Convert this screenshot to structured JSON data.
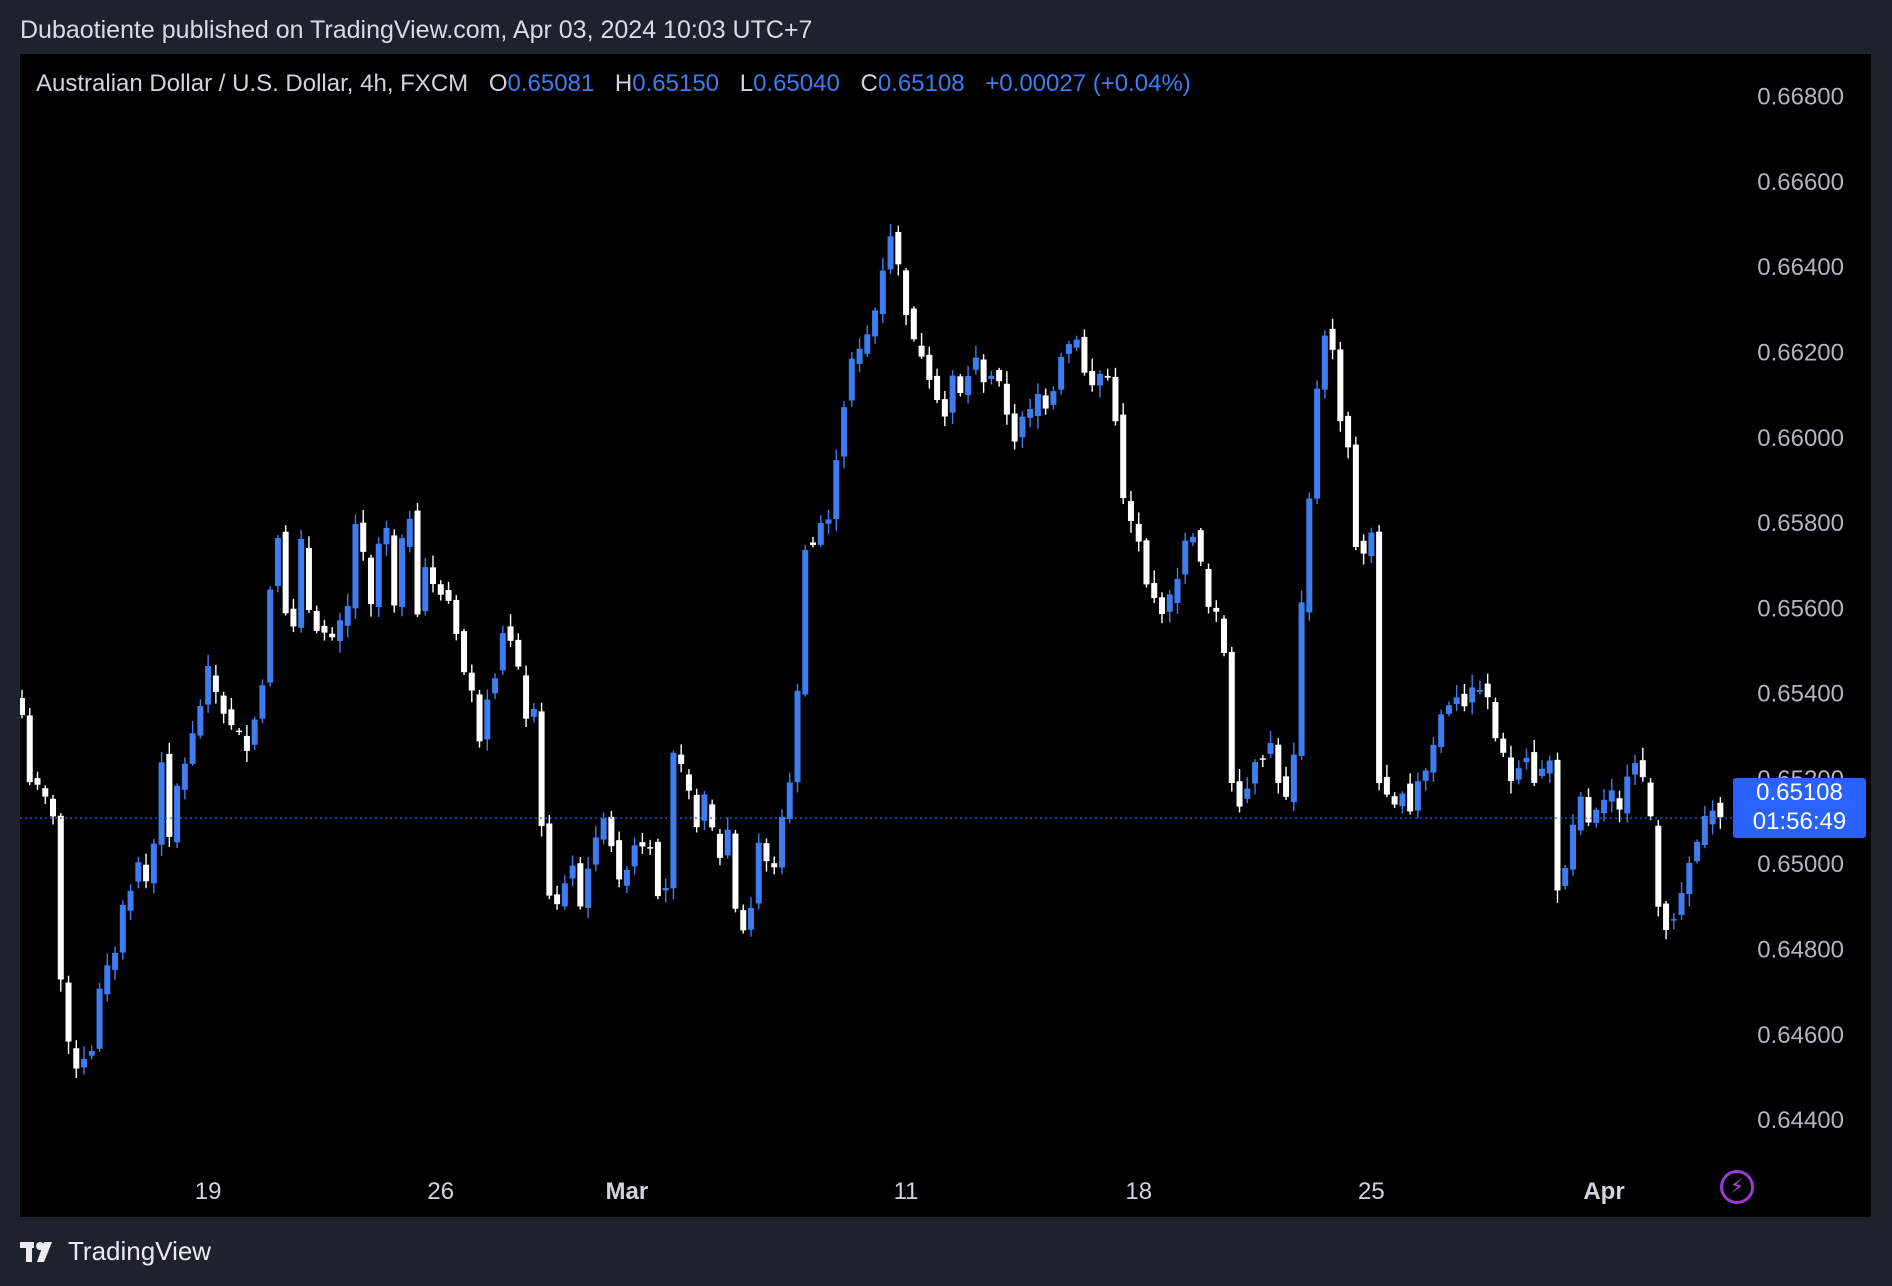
{
  "header": {
    "published_line": "Dubaotiente published on TradingView.com, Apr 03, 2024 10:03 UTC+7"
  },
  "legend": {
    "symbol": "Australian Dollar / U.S. Dollar, 4h, FXCM",
    "open_label": "O",
    "open": "0.65081",
    "high_label": "H",
    "high": "0.65150",
    "low_label": "L",
    "low": "0.65040",
    "close_label": "C",
    "close": "0.65108",
    "change": "+0.00027 (+0.04%)"
  },
  "price_tag": {
    "price": "0.65108",
    "countdown": "01:56:49"
  },
  "footer": {
    "brand": "TradingView"
  },
  "colors": {
    "up": "#3d7df0",
    "down": "#ffffff",
    "background": "#000000",
    "frame": "#1e222d",
    "accent": "#2962ff"
  },
  "icons": {
    "logo": "tradingview-logo-icon",
    "bolt": "lightning-bolt-icon"
  },
  "chart_data": {
    "type": "candlestick",
    "title": "",
    "symbol": "Australian Dollar / U.S. Dollar",
    "interval": "4h",
    "y_axis": {
      "position": "right",
      "ylim": [
        0.6425,
        0.669
      ],
      "ticks": [
        "0.66800",
        "0.66600",
        "0.66400",
        "0.66200",
        "0.66000",
        "0.65800",
        "0.65600",
        "0.65400",
        "0.65200",
        "0.65000",
        "0.64800",
        "0.64600",
        "0.64400"
      ]
    },
    "x_axis": {
      "ticks": [
        {
          "label": "19",
          "bar": 24,
          "bold": false
        },
        {
          "label": "26",
          "bar": 54,
          "bold": false
        },
        {
          "label": "Mar",
          "bar": 78,
          "bold": true
        },
        {
          "label": "11",
          "bar": 114,
          "bold": false
        },
        {
          "label": "18",
          "bar": 144,
          "bold": false
        },
        {
          "label": "25",
          "bar": 174,
          "bold": false
        },
        {
          "label": "Apr",
          "bar": 204,
          "bold": true
        }
      ]
    },
    "current_price": 0.65108,
    "grid": false,
    "anchors": [
      [
        0,
        0.6535
      ],
      [
        1,
        0.652
      ],
      [
        3,
        0.6515
      ],
      [
        4,
        0.6512
      ],
      [
        5,
        0.6473
      ],
      [
        6,
        0.6457
      ],
      [
        7,
        0.6453
      ],
      [
        9,
        0.6457
      ],
      [
        10,
        0.647
      ],
      [
        12,
        0.648
      ],
      [
        13,
        0.649
      ],
      [
        15,
        0.65
      ],
      [
        16,
        0.6496
      ],
      [
        17,
        0.6505
      ],
      [
        18,
        0.6525
      ],
      [
        19,
        0.6505
      ],
      [
        20,
        0.6518
      ],
      [
        22,
        0.653
      ],
      [
        24,
        0.6545
      ],
      [
        26,
        0.6536
      ],
      [
        27,
        0.6532
      ],
      [
        29,
        0.6528
      ],
      [
        31,
        0.6542
      ],
      [
        32,
        0.6565
      ],
      [
        33,
        0.6578
      ],
      [
        34,
        0.656
      ],
      [
        35,
        0.6555
      ],
      [
        36,
        0.6575
      ],
      [
        37,
        0.656
      ],
      [
        38,
        0.6556
      ],
      [
        40,
        0.6552
      ],
      [
        42,
        0.656
      ],
      [
        43,
        0.658
      ],
      [
        44,
        0.6572
      ],
      [
        45,
        0.656
      ],
      [
        46,
        0.6575
      ],
      [
        47,
        0.6578
      ],
      [
        48,
        0.656
      ],
      [
        49,
        0.6575
      ],
      [
        50,
        0.6582
      ],
      [
        51,
        0.656
      ],
      [
        52,
        0.657
      ],
      [
        53,
        0.6565
      ],
      [
        55,
        0.6562
      ],
      [
        56,
        0.6555
      ],
      [
        57,
        0.6545
      ],
      [
        58,
        0.654
      ],
      [
        59,
        0.653
      ],
      [
        60,
        0.654
      ],
      [
        61,
        0.6545
      ],
      [
        62,
        0.6555
      ],
      [
        63,
        0.6552
      ],
      [
        64,
        0.6545
      ],
      [
        65,
        0.6535
      ],
      [
        66,
        0.6535
      ],
      [
        67,
        0.651
      ],
      [
        68,
        0.6492
      ],
      [
        69,
        0.649
      ],
      [
        70,
        0.6496
      ],
      [
        71,
        0.65
      ],
      [
        72,
        0.649
      ],
      [
        73,
        0.65
      ],
      [
        74,
        0.6505
      ],
      [
        75,
        0.6512
      ],
      [
        76,
        0.6505
      ],
      [
        77,
        0.6495
      ],
      [
        79,
        0.6505
      ],
      [
        81,
        0.6505
      ],
      [
        82,
        0.6494
      ],
      [
        83,
        0.6495
      ],
      [
        84,
        0.6525
      ],
      [
        85,
        0.6522
      ],
      [
        86,
        0.6516
      ],
      [
        87,
        0.651
      ],
      [
        88,
        0.6515
      ],
      [
        89,
        0.6508
      ],
      [
        90,
        0.6502
      ],
      [
        91,
        0.6508
      ],
      [
        92,
        0.649
      ],
      [
        93,
        0.6485
      ],
      [
        94,
        0.649
      ],
      [
        95,
        0.6505
      ],
      [
        96,
        0.65
      ],
      [
        97,
        0.65
      ],
      [
        98,
        0.651
      ],
      [
        99,
        0.652
      ],
      [
        100,
        0.654
      ],
      [
        101,
        0.6575
      ],
      [
        102,
        0.6575
      ],
      [
        103,
        0.658
      ],
      [
        104,
        0.658
      ],
      [
        105,
        0.6596
      ],
      [
        106,
        0.6608
      ],
      [
        107,
        0.6618
      ],
      [
        108,
        0.662
      ],
      [
        109,
        0.6624
      ],
      [
        110,
        0.663
      ],
      [
        111,
        0.664
      ],
      [
        112,
        0.6648
      ],
      [
        113,
        0.664
      ],
      [
        114,
        0.663
      ],
      [
        115,
        0.6622
      ],
      [
        116,
        0.662
      ],
      [
        117,
        0.6615
      ],
      [
        118,
        0.661
      ],
      [
        119,
        0.6605
      ],
      [
        120,
        0.6614
      ],
      [
        121,
        0.661
      ],
      [
        122,
        0.6615
      ],
      [
        123,
        0.6618
      ],
      [
        124,
        0.6614
      ],
      [
        125,
        0.6615
      ],
      [
        126,
        0.6612
      ],
      [
        127,
        0.6606
      ],
      [
        128,
        0.66
      ],
      [
        129,
        0.6604
      ],
      [
        130,
        0.6606
      ],
      [
        131,
        0.661
      ],
      [
        132,
        0.6608
      ],
      [
        133,
        0.6612
      ],
      [
        134,
        0.662
      ],
      [
        135,
        0.6622
      ],
      [
        136,
        0.6624
      ],
      [
        137,
        0.6615
      ],
      [
        138,
        0.6612
      ],
      [
        139,
        0.6615
      ],
      [
        140,
        0.6614
      ],
      [
        141,
        0.6605
      ],
      [
        142,
        0.6585
      ],
      [
        143,
        0.658
      ],
      [
        144,
        0.6575
      ],
      [
        145,
        0.6565
      ],
      [
        146,
        0.6562
      ],
      [
        147,
        0.656
      ],
      [
        148,
        0.6562
      ],
      [
        149,
        0.6568
      ],
      [
        150,
        0.6575
      ],
      [
        151,
        0.6578
      ],
      [
        152,
        0.657
      ],
      [
        153,
        0.656
      ],
      [
        154,
        0.6558
      ],
      [
        155,
        0.655
      ],
      [
        156,
        0.652
      ],
      [
        157,
        0.6515
      ],
      [
        158,
        0.6518
      ],
      [
        159,
        0.6525
      ],
      [
        160,
        0.6526
      ],
      [
        161,
        0.6528
      ],
      [
        162,
        0.652
      ],
      [
        163,
        0.6515
      ],
      [
        164,
        0.6525
      ],
      [
        165,
        0.656
      ],
      [
        166,
        0.6585
      ],
      [
        167,
        0.6612
      ],
      [
        168,
        0.6625
      ],
      [
        169,
        0.662
      ],
      [
        170,
        0.6605
      ],
      [
        171,
        0.6598
      ],
      [
        172,
        0.6575
      ],
      [
        173,
        0.6572
      ],
      [
        174,
        0.6578
      ],
      [
        175,
        0.652
      ],
      [
        176,
        0.6515
      ],
      [
        177,
        0.6513
      ],
      [
        178,
        0.6518
      ],
      [
        179,
        0.6513
      ],
      [
        180,
        0.652
      ],
      [
        181,
        0.6522
      ],
      [
        182,
        0.6528
      ],
      [
        183,
        0.6535
      ],
      [
        184,
        0.6538
      ],
      [
        185,
        0.654
      ],
      [
        186,
        0.6538
      ],
      [
        187,
        0.654
      ],
      [
        188,
        0.6542
      ],
      [
        189,
        0.6538
      ],
      [
        190,
        0.653
      ],
      [
        191,
        0.6525
      ],
      [
        192,
        0.652
      ],
      [
        193,
        0.6524
      ],
      [
        194,
        0.6526
      ],
      [
        195,
        0.652
      ],
      [
        196,
        0.6522
      ],
      [
        197,
        0.6524
      ],
      [
        198,
        0.6495
      ],
      [
        199,
        0.6498
      ],
      [
        200,
        0.6508
      ],
      [
        201,
        0.6515
      ],
      [
        202,
        0.651
      ],
      [
        203,
        0.6512
      ],
      [
        204,
        0.6514
      ],
      [
        205,
        0.6516
      ],
      [
        206,
        0.6512
      ],
      [
        207,
        0.6522
      ],
      [
        208,
        0.6525
      ],
      [
        209,
        0.652
      ],
      [
        210,
        0.651
      ],
      [
        211,
        0.649
      ],
      [
        212,
        0.6486
      ],
      [
        213,
        0.6488
      ],
      [
        214,
        0.6492
      ],
      [
        215,
        0.65
      ],
      [
        216,
        0.6505
      ],
      [
        217,
        0.651
      ],
      [
        218,
        0.6514
      ],
      [
        219,
        0.6511
      ]
    ]
  }
}
